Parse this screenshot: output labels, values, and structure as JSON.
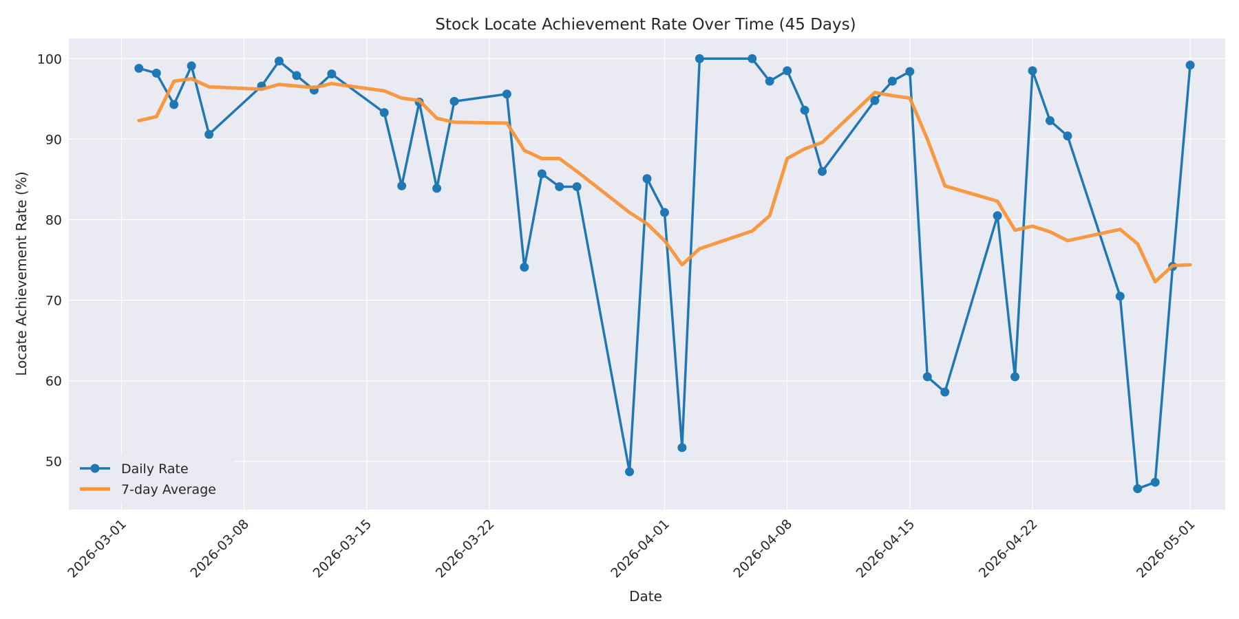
{
  "chart_data": {
    "type": "line",
    "title": "Stock Locate Achievement Rate Over Time (45 Days)",
    "xlabel": "Date",
    "ylabel": "Locate Achievement Rate (%)",
    "xlim": [
      "2026-02-26",
      "2026-05-03"
    ],
    "ylim": [
      44,
      102.5
    ],
    "x_ticks": [
      "2026-03-01",
      "2026-03-08",
      "2026-03-15",
      "2026-03-22",
      "2026-04-01",
      "2026-04-08",
      "2026-04-15",
      "2026-04-22",
      "2026-05-01"
    ],
    "y_ticks": [
      50,
      60,
      70,
      80,
      90,
      100
    ],
    "grid": true,
    "legend_position": "lower-left",
    "dates": [
      "2026-03-02",
      "2026-03-03",
      "2026-03-04",
      "2026-03-05",
      "2026-03-06",
      "2026-03-09",
      "2026-03-10",
      "2026-03-11",
      "2026-03-12",
      "2026-03-13",
      "2026-03-16",
      "2026-03-17",
      "2026-03-18",
      "2026-03-19",
      "2026-03-20",
      "2026-03-23",
      "2026-03-24",
      "2026-03-25",
      "2026-03-26",
      "2026-03-27",
      "2026-03-30",
      "2026-03-31",
      "2026-04-01",
      "2026-04-02",
      "2026-04-03",
      "2026-04-06",
      "2026-04-07",
      "2026-04-08",
      "2026-04-09",
      "2026-04-10",
      "2026-04-13",
      "2026-04-14",
      "2026-04-15",
      "2026-04-16",
      "2026-04-17",
      "2026-04-20",
      "2026-04-21",
      "2026-04-22",
      "2026-04-23",
      "2026-04-24",
      "2026-04-27",
      "2026-04-28",
      "2026-04-29",
      "2026-04-30",
      "2026-05-01"
    ],
    "series": [
      {
        "name": "Daily Rate",
        "color": "#1f77b4",
        "marker": "circle",
        "values": [
          98.8,
          98.2,
          94.3,
          99.1,
          90.6,
          96.6,
          99.7,
          97.9,
          96.1,
          98.1,
          93.3,
          84.2,
          94.6,
          83.9,
          94.7,
          95.6,
          74.1,
          85.7,
          84.1,
          84.1,
          48.7,
          85.1,
          80.9,
          51.7,
          100.0,
          100.0,
          97.2,
          98.5,
          93.6,
          86.0,
          94.8,
          97.2,
          98.4,
          60.5,
          58.6,
          80.5,
          60.5,
          98.5,
          92.3,
          90.4,
          70.5,
          46.6,
          47.4,
          74.2,
          99.2
        ]
      },
      {
        "name": "7-day Average",
        "color": "#f79538",
        "marker": "none",
        "values": [
          92.3,
          92.8,
          97.2,
          97.5,
          96.5,
          96.2,
          96.8,
          96.6,
          96.4,
          96.9,
          96.0,
          95.1,
          94.8,
          92.6,
          92.1,
          92.0,
          88.6,
          87.6,
          87.6,
          86.0,
          80.9,
          79.5,
          77.4,
          74.4,
          76.4,
          78.6,
          80.5,
          87.6,
          88.8,
          89.6,
          95.8,
          95.4,
          95.1,
          90.0,
          84.2,
          82.3,
          78.7,
          79.2,
          78.5,
          77.4,
          78.8,
          77.0,
          72.3,
          74.3,
          74.4
        ]
      }
    ]
  }
}
